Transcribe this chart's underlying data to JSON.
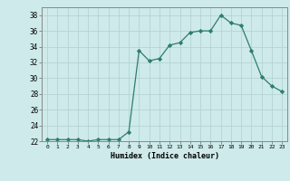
{
  "x": [
    0,
    1,
    2,
    3,
    4,
    5,
    6,
    7,
    8,
    9,
    10,
    11,
    12,
    13,
    14,
    15,
    16,
    17,
    18,
    19,
    20,
    21,
    22,
    23
  ],
  "y": [
    22.2,
    22.2,
    22.2,
    22.2,
    22.0,
    22.2,
    22.2,
    22.2,
    23.2,
    33.5,
    32.2,
    32.5,
    34.2,
    34.5,
    35.8,
    36.0,
    36.0,
    38.0,
    37.0,
    36.7,
    33.5,
    30.2,
    29.0,
    28.3
  ],
  "xlabel": "Humidex (Indice chaleur)",
  "ylim": [
    22,
    39
  ],
  "xlim": [
    -0.5,
    23.5
  ],
  "yticks": [
    22,
    24,
    26,
    28,
    30,
    32,
    34,
    36,
    38
  ],
  "xticks": [
    0,
    1,
    2,
    3,
    4,
    5,
    6,
    7,
    8,
    9,
    10,
    11,
    12,
    13,
    14,
    15,
    16,
    17,
    18,
    19,
    20,
    21,
    22,
    23
  ],
  "xtick_labels": [
    "0",
    "1",
    "2",
    "3",
    "4",
    "5",
    "6",
    "7",
    "8",
    "9",
    "10",
    "11",
    "12",
    "13",
    "14",
    "15",
    "16",
    "17",
    "18",
    "19",
    "20",
    "21",
    "22",
    "23"
  ],
  "line_color": "#2e7d6e",
  "marker": "D",
  "marker_size": 2.2,
  "bg_color": "#ceeaea",
  "grid_color": "#b0d0d0",
  "fig_bg": "#ceeaea"
}
